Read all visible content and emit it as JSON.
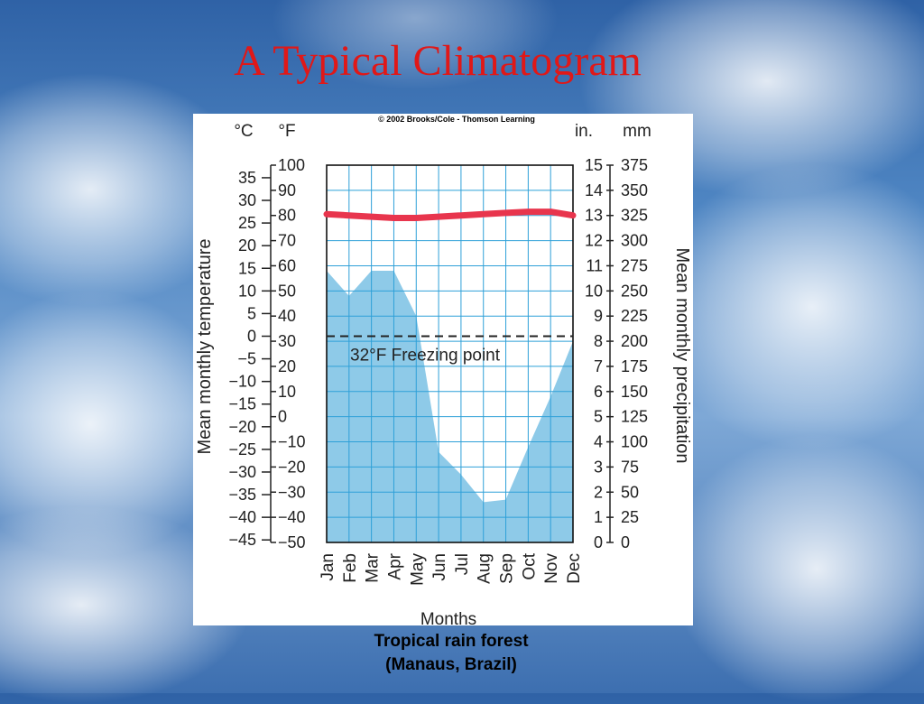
{
  "slide": {
    "title": "A Typical Climatogram",
    "caption_line1": "Tropical rain forest",
    "caption_line2": "(Manaus, Brazil)"
  },
  "chart_data": {
    "type": "line",
    "copyright": "© 2002 Brooks/Cole - Thomson Learning",
    "categories": [
      "Jan",
      "Feb",
      "Mar",
      "Apr",
      "May",
      "Jun",
      "Jul",
      "Aug",
      "Sep",
      "Oct",
      "Nov",
      "Dec"
    ],
    "xlabel": "Months",
    "ylabel_left": "Mean monthly temperature",
    "ylabel_right": "Mean monthly precipitation",
    "unit_celsius": "°C",
    "unit_fahrenheit": "°F",
    "unit_inches": "in.",
    "unit_mm": "mm",
    "celsius_ticks": [
      "35",
      "30",
      "25",
      "20",
      "15",
      "10",
      "5",
      "0",
      "−5",
      "−10",
      "−15",
      "−20",
      "−25",
      "−30",
      "−35",
      "−40",
      "−45"
    ],
    "fahrenheit_ticks": [
      "100",
      "90",
      "80",
      "70",
      "60",
      "50",
      "40",
      "30",
      "20",
      "10",
      "0",
      "−10",
      "−20",
      "−30",
      "−40",
      "−50"
    ],
    "inch_ticks": [
      "15",
      "14",
      "13",
      "12",
      "11",
      "10",
      "9",
      "8",
      "7",
      "6",
      "5",
      "4",
      "3",
      "2",
      "1",
      "0"
    ],
    "mm_ticks": [
      "375",
      "350",
      "325",
      "300",
      "275",
      "250",
      "225",
      "200",
      "175",
      "150",
      "125",
      "100",
      "75",
      "50",
      "25",
      "0"
    ],
    "ylim_fahrenheit": [
      -50,
      100
    ],
    "ylim_inches": [
      0,
      15
    ],
    "freezing_point_f": 32,
    "freezing_label": "32°F Freezing point",
    "temperature_f": [
      80.5,
      80,
      79.5,
      79,
      79,
      79.5,
      80,
      80.5,
      81,
      81.5,
      81.5,
      80
    ],
    "precipitation_in": [
      10.8,
      9.8,
      10.8,
      10.8,
      9,
      3.6,
      2.7,
      1.6,
      1.7,
      3.8,
      5.8,
      8
    ],
    "series": [
      {
        "name": "Mean monthly temperature",
        "color": "#e8354d"
      },
      {
        "name": "Mean monthly precipitation",
        "color": "#8ecae8"
      }
    ],
    "grid": true
  }
}
